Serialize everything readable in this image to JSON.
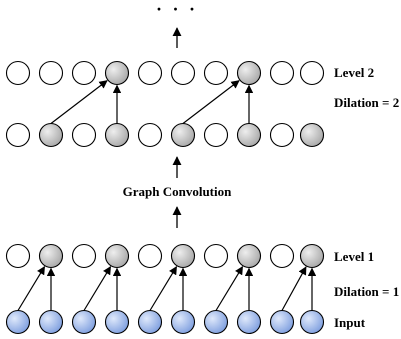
{
  "labels": {
    "ellipsis": "· · ·",
    "level2": "Level 2",
    "dilation2": "Dilation = 2",
    "graph_conv": "Graph Convolution",
    "level1": "Level 1",
    "dilation1": "Dilation = 1",
    "input": "Input"
  },
  "colors": {
    "white_node": "#ffffff",
    "gray_node_light": "#eeeeee",
    "gray_node_dark": "#a8a8a8",
    "blue_node_light": "#dfe9fb",
    "blue_node_dark": "#7f9fdf",
    "stroke": "#000000"
  },
  "diagram": {
    "node_count_per_row": 10,
    "rows": [
      {
        "name": "level2-row",
        "fills": [
          "white",
          "white",
          "white",
          "gray",
          "white",
          "white",
          "white",
          "gray",
          "white",
          "white"
        ]
      },
      {
        "name": "level2-input-row",
        "fills": [
          "white",
          "gray",
          "white",
          "gray",
          "white",
          "gray",
          "white",
          "gray",
          "white",
          "gray"
        ]
      },
      {
        "name": "level1-row",
        "fills": [
          "white",
          "gray",
          "white",
          "gray",
          "white",
          "gray",
          "white",
          "gray",
          "white",
          "gray"
        ]
      },
      {
        "name": "input-row",
        "fills": [
          "blue",
          "blue",
          "blue",
          "blue",
          "blue",
          "blue",
          "blue",
          "blue",
          "blue",
          "blue"
        ]
      }
    ],
    "connections": [
      {
        "from_row": 1,
        "from": 1,
        "to_row": 0,
        "to": 3
      },
      {
        "from_row": 1,
        "from": 3,
        "to_row": 0,
        "to": 3
      },
      {
        "from_row": 1,
        "from": 5,
        "to_row": 0,
        "to": 7
      },
      {
        "from_row": 1,
        "from": 7,
        "to_row": 0,
        "to": 7
      },
      {
        "from_row": 3,
        "from": 0,
        "to_row": 2,
        "to": 1
      },
      {
        "from_row": 3,
        "from": 1,
        "to_row": 2,
        "to": 1
      },
      {
        "from_row": 3,
        "from": 2,
        "to_row": 2,
        "to": 3
      },
      {
        "from_row": 3,
        "from": 3,
        "to_row": 2,
        "to": 3
      },
      {
        "from_row": 3,
        "from": 4,
        "to_row": 2,
        "to": 5
      },
      {
        "from_row": 3,
        "from": 5,
        "to_row": 2,
        "to": 5
      },
      {
        "from_row": 3,
        "from": 6,
        "to_row": 2,
        "to": 7
      },
      {
        "from_row": 3,
        "from": 7,
        "to_row": 2,
        "to": 7
      },
      {
        "from_row": 3,
        "from": 8,
        "to_row": 2,
        "to": 9
      },
      {
        "from_row": 3,
        "from": 9,
        "to_row": 2,
        "to": 9
      }
    ]
  }
}
